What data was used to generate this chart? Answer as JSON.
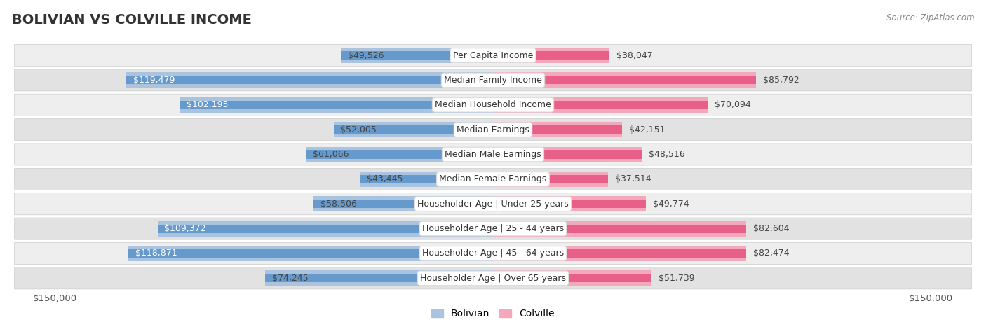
{
  "title": "BOLIVIAN VS COLVILLE INCOME",
  "source": "Source: ZipAtlas.com",
  "categories": [
    "Per Capita Income",
    "Median Family Income",
    "Median Household Income",
    "Median Earnings",
    "Median Male Earnings",
    "Median Female Earnings",
    "Householder Age | Under 25 years",
    "Householder Age | 25 - 44 years",
    "Householder Age | 45 - 64 years",
    "Householder Age | Over 65 years"
  ],
  "bolivian_values": [
    49526,
    119479,
    102195,
    52005,
    61066,
    43445,
    58506,
    109372,
    118871,
    74245
  ],
  "colville_values": [
    38047,
    85792,
    70094,
    42151,
    48516,
    37514,
    49774,
    82604,
    82474,
    51739
  ],
  "bolivian_labels": [
    "$49,526",
    "$119,479",
    "$102,195",
    "$52,005",
    "$61,066",
    "$43,445",
    "$58,506",
    "$109,372",
    "$118,871",
    "$74,245"
  ],
  "colville_labels": [
    "$38,047",
    "$85,792",
    "$70,094",
    "$42,151",
    "$48,516",
    "$37,514",
    "$49,774",
    "$82,604",
    "$82,474",
    "$51,739"
  ],
  "bolivian_color_light": "#aac4e0",
  "bolivian_color_dark": "#6699cc",
  "colville_color_light": "#f4a8bb",
  "colville_color_dark": "#e8608a",
  "max_value": 150000,
  "x_label_left": "$150,000",
  "x_label_right": "$150,000",
  "legend_bolivian": "Bolivian",
  "legend_colville": "Colville",
  "row_bg_light": "#eeeeee",
  "row_bg_dark": "#e2e2e2",
  "bar_height": 0.62,
  "title_fontsize": 14,
  "label_fontsize": 9,
  "category_fontsize": 9,
  "inside_label_threshold": 85000
}
